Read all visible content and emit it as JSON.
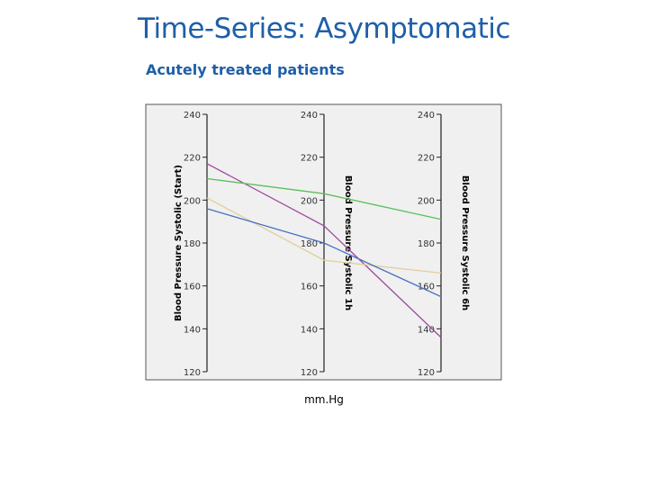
{
  "title": "Time-Series: Asymptomatic",
  "subtitle": "Acutely treated patients",
  "chart_data": {
    "type": "line",
    "chart_style": "parallel-coordinates",
    "title": "",
    "xlabel": "mm.Hg",
    "axes": [
      {
        "label": "Blood Pressure Systolic (Start)",
        "ticks": [
          "240",
          "220",
          "200",
          "180",
          "160",
          "140",
          "120"
        ]
      },
      {
        "label": "Blood Pressure Systolic 1h",
        "ticks": [
          "240",
          "220",
          "200",
          "180",
          "160",
          "140",
          "120"
        ]
      },
      {
        "label": "Blood Pressure Systolic 6h",
        "ticks": [
          "240",
          "220",
          "200",
          "180",
          "160",
          "140",
          "120"
        ]
      }
    ],
    "ylim": [
      120,
      240
    ],
    "series": [
      {
        "color": "#a04aa0",
        "values": [
          217,
          188,
          136
        ]
      },
      {
        "color": "#5bbf5b",
        "values": [
          210,
          203,
          191
        ]
      },
      {
        "color": "#e0cf9a",
        "values": [
          201,
          172,
          166
        ]
      },
      {
        "color": "#4a72c0",
        "values": [
          196,
          180,
          155
        ]
      }
    ],
    "grid": false,
    "legend": "none"
  }
}
